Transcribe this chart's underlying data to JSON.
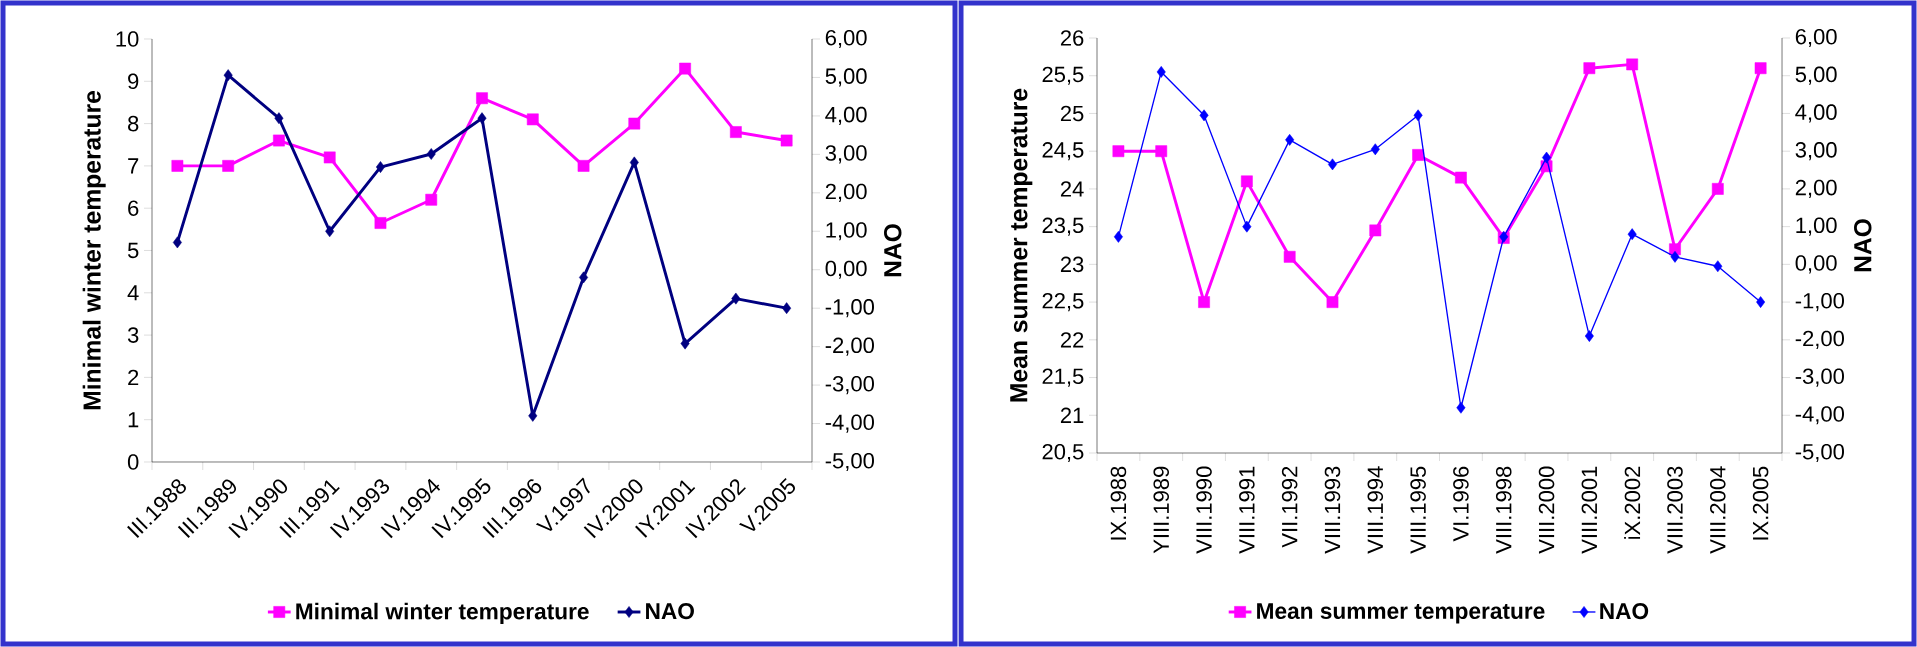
{
  "chart_data": [
    {
      "type": "line",
      "categories": [
        "III.1988",
        "III.1989",
        "IV.1990",
        "III.1991",
        "IV.1993",
        "IV.1994",
        "IV.1995",
        "III.1996",
        "V.1997",
        "IV.2000",
        "IY.2001",
        "IV.2002",
        "V.2005"
      ],
      "series": [
        {
          "name": "Minimal winter temperature",
          "color": "#ff00ff",
          "marker": "square",
          "values": [
            7.0,
            7.0,
            7.6,
            7.2,
            5.65,
            6.2,
            8.6,
            8.1,
            7.0,
            8.0,
            9.3,
            7.8,
            7.6
          ]
        },
        {
          "name": "NAO",
          "color": "#000080",
          "marker": "diamond",
          "axis": "y2",
          "values": [
            0.71,
            5.06,
            3.94,
            1.0,
            2.67,
            3.01,
            3.94,
            -3.8,
            -0.2,
            2.79,
            -1.92,
            -0.75,
            -1.0
          ]
        }
      ],
      "ylabel": "Minimal winter temperature",
      "y2label": "NAO",
      "ylim": [
        0,
        10
      ],
      "yticks": [
        0,
        1,
        2,
        3,
        4,
        5,
        6,
        7,
        8,
        9,
        10
      ],
      "y2lim": [
        -5,
        6
      ],
      "y2ticks": [
        {
          "value": -5,
          "label": "-5,00"
        },
        {
          "value": -4,
          "label": "-4,00"
        },
        {
          "value": -3,
          "label": "-3,00"
        },
        {
          "value": -2,
          "label": "-2,00"
        },
        {
          "value": -1,
          "label": "-1,00"
        },
        {
          "value": 0,
          "label": "0,00"
        },
        {
          "value": 1,
          "label": "1,00"
        },
        {
          "value": 2,
          "label": "2,00"
        },
        {
          "value": 3,
          "label": "3,00"
        },
        {
          "value": 4,
          "label": "4,00"
        },
        {
          "value": 5,
          "label": "5,00"
        },
        {
          "value": 6,
          "label": "6,00"
        }
      ],
      "legend": "bottom",
      "grid": false
    },
    {
      "type": "line",
      "categories": [
        "IX.1988",
        "YIII.1989",
        "VIII.1990",
        "VIII.1991",
        "VII.1992",
        "VIII.1993",
        "VIII.1994",
        "VIII.1995",
        "VI.1996",
        "VIII.1998",
        "VIII.2000",
        "VIII.2001",
        "iX.2002",
        "VIII.2003",
        "VIII.2004",
        "IX.2005"
      ],
      "series": [
        {
          "name": "Mean summer temperature",
          "color": "#ff00ff",
          "marker": "square",
          "values": [
            24.5,
            24.5,
            22.5,
            24.1,
            23.1,
            22.5,
            23.45,
            24.45,
            24.15,
            23.35,
            24.3,
            25.6,
            25.65,
            23.2,
            24.0,
            25.6
          ]
        },
        {
          "name": "NAO",
          "color": "#0000ff",
          "marker": "diamond",
          "axis": "y2",
          "values": [
            0.73,
            5.1,
            3.95,
            1.0,
            3.3,
            2.65,
            3.05,
            3.95,
            -3.8,
            0.73,
            2.83,
            -1.9,
            0.8,
            0.2,
            -0.05,
            -1.0
          ]
        }
      ],
      "ylabel": "Mean summer temperature",
      "y2label": "NAO",
      "ylim": [
        20.5,
        26
      ],
      "yticks": [
        {
          "value": 20.5,
          "label": "20,5"
        },
        21,
        {
          "value": 21.5,
          "label": "21,5"
        },
        22,
        {
          "value": 22.5,
          "label": "22,5"
        },
        23,
        {
          "value": 23.5,
          "label": "23,5"
        },
        24,
        {
          "value": 24.5,
          "label": "24,5"
        },
        25,
        {
          "value": 25.5,
          "label": "25,5"
        },
        26
      ],
      "y2lim": [
        -5,
        6
      ],
      "y2ticks": [
        {
          "value": -5,
          "label": "-5,00"
        },
        {
          "value": -4,
          "label": "-4,00"
        },
        {
          "value": -3,
          "label": "-3,00"
        },
        {
          "value": -2,
          "label": "-2,00"
        },
        {
          "value": -1,
          "label": "-1,00"
        },
        {
          "value": 0,
          "label": "0,00"
        },
        {
          "value": 1,
          "label": "1,00"
        },
        {
          "value": 2,
          "label": "2,00"
        },
        {
          "value": 3,
          "label": "3,00"
        },
        {
          "value": 4,
          "label": "4,00"
        },
        {
          "value": 5,
          "label": "5,00"
        },
        {
          "value": 6,
          "label": "6,00"
        }
      ],
      "legend": "bottom",
      "grid": false
    }
  ]
}
